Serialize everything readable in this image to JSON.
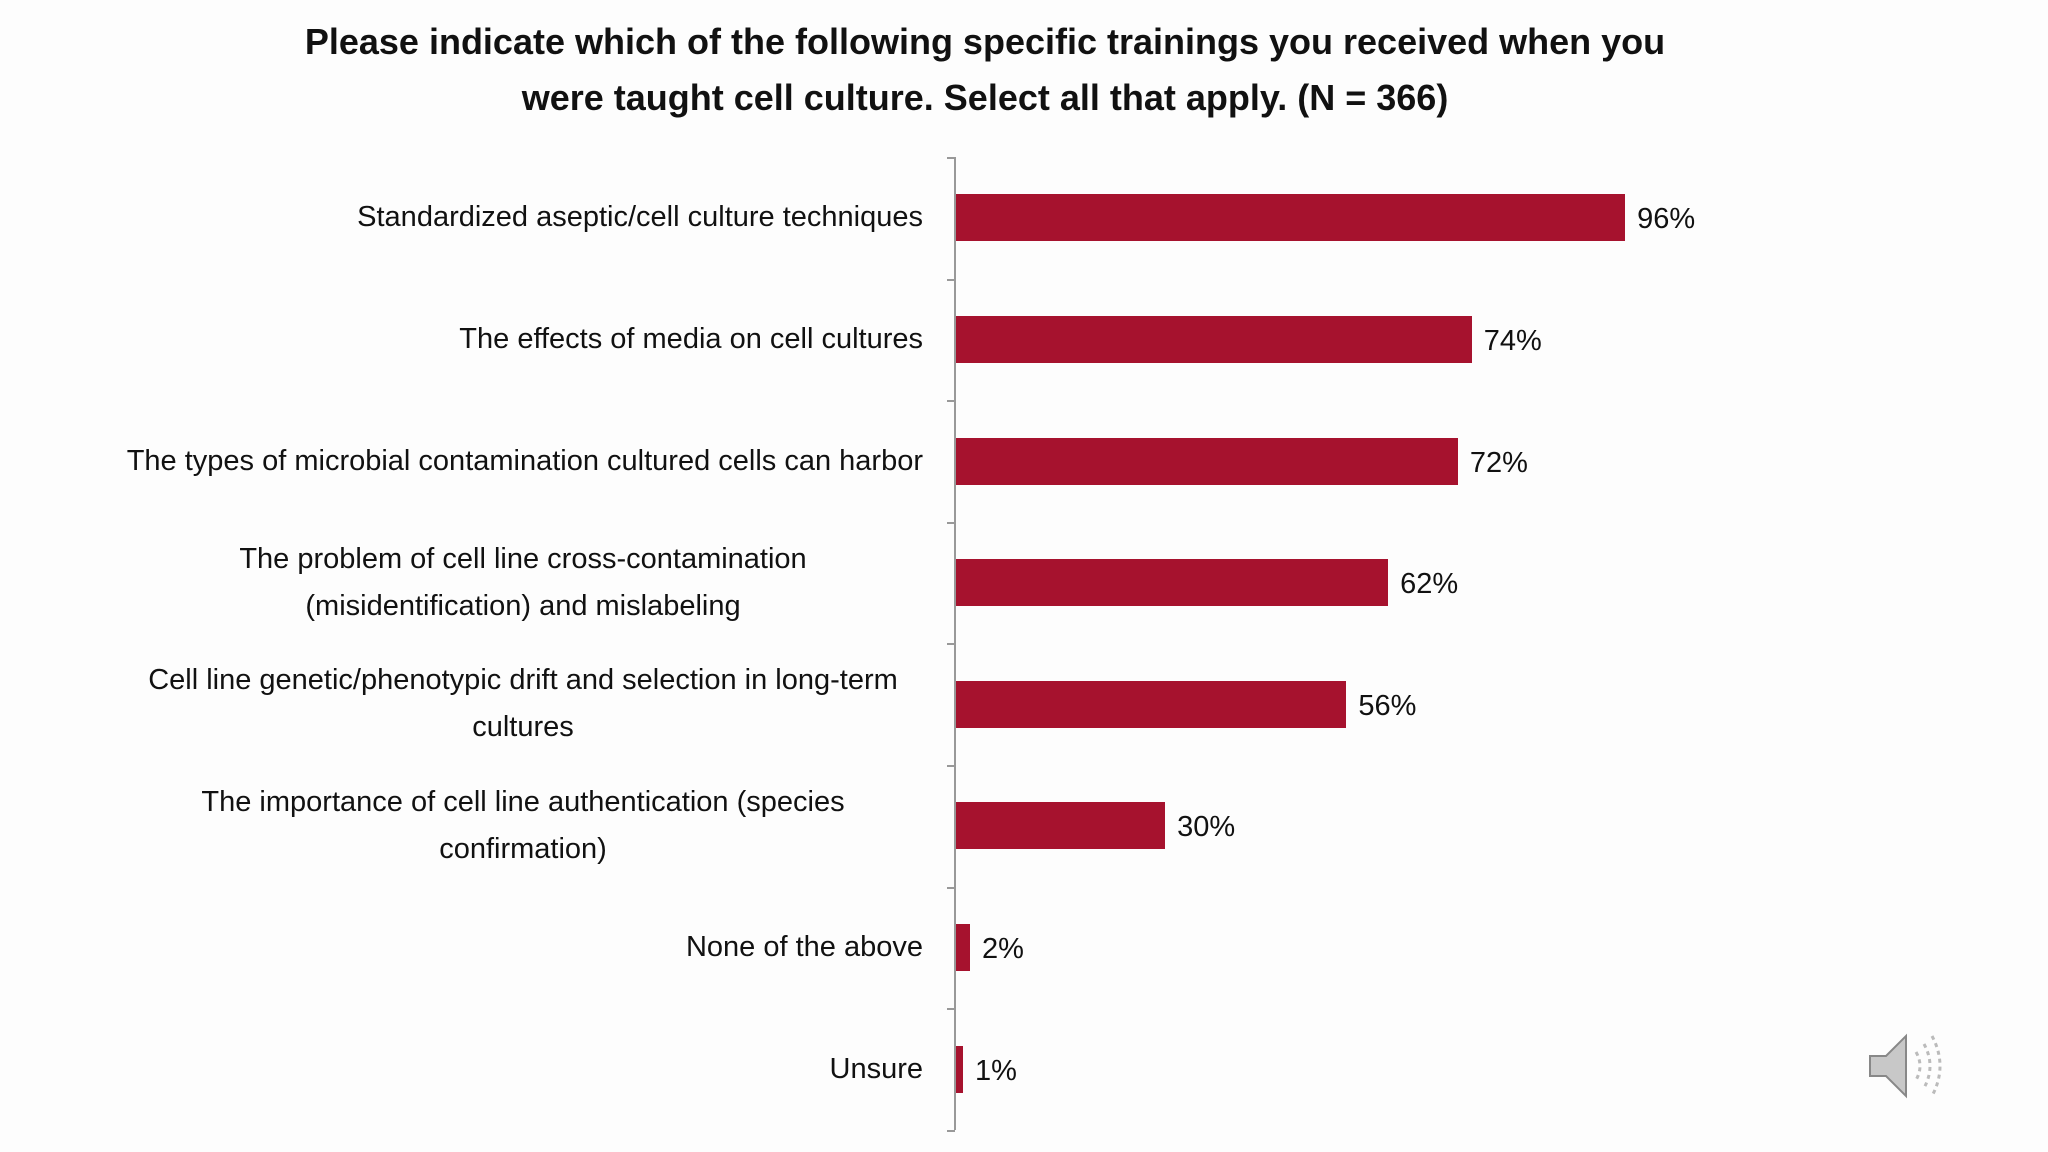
{
  "chart_data": {
    "type": "hbar",
    "title": "Please indicate which of the following specific trainings you received when you were taught cell culture. Select all that apply. (N = 366)",
    "categories": [
      "Standardized aseptic/cell culture techniques",
      "The effects of media on cell cultures",
      "The types of microbial contamination cultured cells can harbor",
      "The problem of cell line cross-contamination (misidentification) and mislabeling",
      "Cell line genetic/phenotypic drift and selection in long-term cultures",
      "The importance of cell line authentication (species confirmation)",
      "None of the above",
      "Unsure"
    ],
    "values": [
      96,
      74,
      72,
      62,
      56,
      30,
      2,
      1
    ],
    "value_labels": [
      "96%",
      "74%",
      "72%",
      "62%",
      "56%",
      "30%",
      "2%",
      "1%"
    ],
    "color": "#a6122e"
  }
}
